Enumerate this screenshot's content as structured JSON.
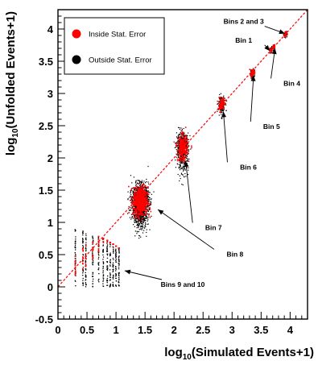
{
  "chart_data": {
    "type": "scatter",
    "title": "",
    "xlabel": {
      "prefix": "log",
      "sub": "10",
      "suffix": "(Simulated Events+1)"
    },
    "ylabel": {
      "prefix": "log",
      "sub": "10",
      "suffix": "(Unfolded Events+1)"
    },
    "xlim": [
      0,
      4.3
    ],
    "ylim": [
      -0.5,
      4.3
    ],
    "xticks": [
      {
        "value": 0,
        "label": "0"
      },
      {
        "value": 0.5,
        "label": "0.5"
      },
      {
        "value": 1,
        "label": "1"
      },
      {
        "value": 1.5,
        "label": "1.5"
      },
      {
        "value": 2,
        "label": "2"
      },
      {
        "value": 2.5,
        "label": "2.5"
      },
      {
        "value": 3,
        "label": "3"
      },
      {
        "value": 3.5,
        "label": "3.5"
      },
      {
        "value": 4,
        "label": "4"
      }
    ],
    "yticks": [
      {
        "value": -0.5,
        "label": "-0.5"
      },
      {
        "value": 0,
        "label": "0"
      },
      {
        "value": 0.5,
        "label": "0.5"
      },
      {
        "value": 1,
        "label": "1"
      },
      {
        "value": 1.5,
        "label": "1.5"
      },
      {
        "value": 2,
        "label": "2"
      },
      {
        "value": 2.5,
        "label": "2.5"
      },
      {
        "value": 3,
        "label": "3"
      },
      {
        "value": 3.5,
        "label": "3.5"
      },
      {
        "value": 4,
        "label": "4"
      }
    ],
    "grid": false,
    "legend": {
      "placement": "top-left",
      "entries": [
        {
          "label": "Inside Stat. Error",
          "color": "#ff0000"
        },
        {
          "label": "Outside Stat. Error",
          "color": "#000000"
        }
      ]
    },
    "reference_line": {
      "style": "dashed",
      "color": "#ff0000",
      "from": [
        0,
        0
      ],
      "to": [
        4.3,
        4.3
      ]
    },
    "clusters": [
      {
        "name": "Bin 1",
        "x": 3.67,
        "y": 3.67,
        "sx": 0.015,
        "sy": 0.025,
        "n_outside": 25,
        "n_inside": 25
      },
      {
        "name": "Bin 2",
        "x": 3.93,
        "y": 3.93,
        "sx": 0.01,
        "sy": 0.02,
        "n_outside": 20,
        "n_inside": 25
      },
      {
        "name": "Bin 3",
        "x": 3.91,
        "y": 3.9,
        "sx": 0.01,
        "sy": 0.02,
        "n_outside": 15,
        "n_inside": 15
      },
      {
        "name": "Bin 4",
        "x": 3.72,
        "y": 3.72,
        "sx": 0.012,
        "sy": 0.025,
        "n_outside": 25,
        "n_inside": 25
      },
      {
        "name": "Bin 5",
        "x": 3.35,
        "y": 3.32,
        "sx": 0.02,
        "sy": 0.045,
        "n_outside": 60,
        "n_inside": 50
      },
      {
        "name": "Bin 6",
        "x": 2.82,
        "y": 2.83,
        "sx": 0.03,
        "sy": 0.07,
        "n_outside": 160,
        "n_inside": 90
      },
      {
        "name": "Bin 7",
        "x": 2.15,
        "y": 2.15,
        "sx": 0.05,
        "sy": 0.14,
        "n_outside": 650,
        "n_inside": 280
      },
      {
        "name": "Bin 8",
        "x": 1.42,
        "y": 1.32,
        "sx": 0.07,
        "sy": 0.16,
        "n_outside": 1500,
        "n_inside": 650
      }
    ],
    "low_bins": {
      "name": "Bins 9 and 10",
      "x_columns": [
        0.3,
        0.43,
        0.48,
        0.6,
        0.7,
        0.78,
        0.85,
        0.9,
        0.95,
        1.0,
        1.05
      ],
      "y_range": [
        0.0,
        0.9
      ]
    },
    "annotations": [
      {
        "text": "Bins 2 and 3",
        "target": [
          3.91,
          3.93
        ],
        "label_at": [
          3.2,
          4.08
        ]
      },
      {
        "text": "Bin 1",
        "target": [
          3.65,
          3.66
        ],
        "label_at": [
          3.2,
          3.79
        ]
      },
      {
        "text": "Bin 4",
        "target": [
          3.74,
          3.7
        ],
        "label_at": [
          4.03,
          3.12
        ]
      },
      {
        "text": "Bin 5",
        "target": [
          3.37,
          3.28
        ],
        "label_at": [
          3.68,
          2.45
        ]
      },
      {
        "text": "Bin 6",
        "target": [
          2.85,
          2.72
        ],
        "label_at": [
          3.28,
          1.82
        ]
      },
      {
        "text": "Bin 7",
        "target": [
          2.2,
          1.95
        ],
        "label_at": [
          2.68,
          0.88
        ]
      },
      {
        "text": "Bin 8",
        "target": [
          1.72,
          1.2
        ],
        "label_at": [
          3.05,
          0.47
        ]
      },
      {
        "text": "Bins 9 and 10",
        "target": [
          1.15,
          0.25
        ],
        "label_at": [
          2.15,
          0.0
        ]
      }
    ]
  }
}
